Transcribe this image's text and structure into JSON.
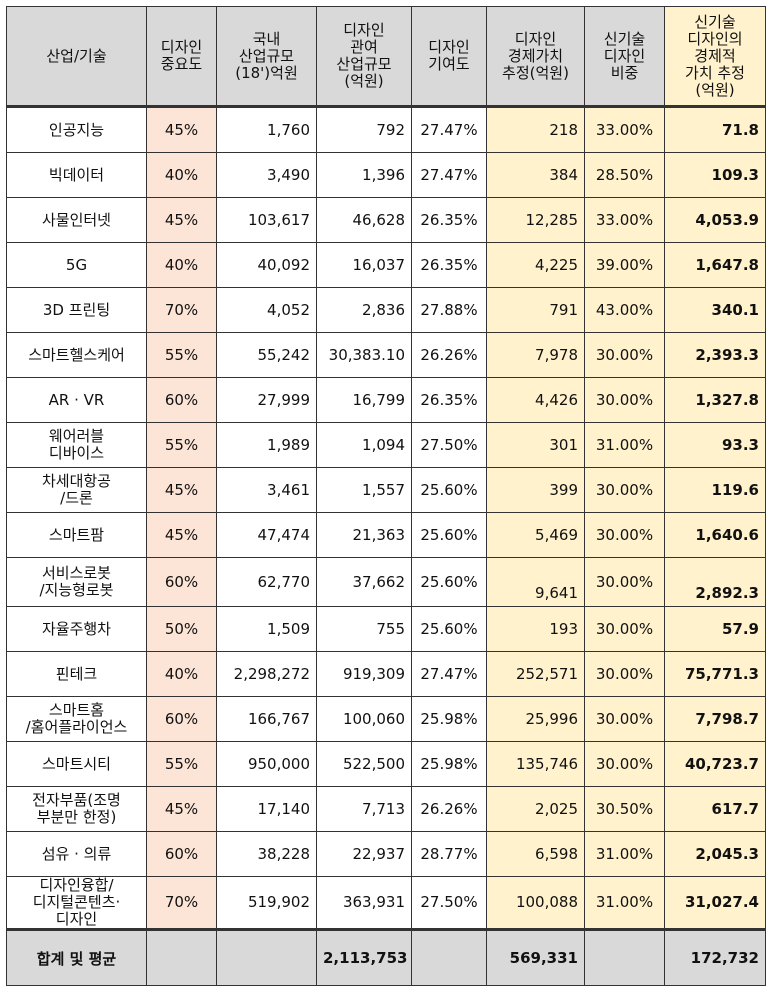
{
  "headers": [
    "산업/기술",
    "디자인\n중요도",
    "국내\n산업규모\n(18')억원",
    "디자인\n관여\n산업규모\n(억원)",
    "디자인\n기여도",
    "디자인\n경제가치\n추정(억원)",
    "신기술\n디자인\n비중",
    "신기술\n디자인의\n경제적\n가치 추정\n(억원)"
  ],
  "rows": [
    {
      "name": "인공지능",
      "importance": "45%",
      "industry_size": "1,760",
      "design_size": "792",
      "contribution": "27.47%",
      "design_value": "218",
      "share": "33.00%",
      "total": "71.8"
    },
    {
      "name": "빅데이터",
      "importance": "40%",
      "industry_size": "3,490",
      "design_size": "1,396",
      "contribution": "27.47%",
      "design_value": "384",
      "share": "28.50%",
      "total": "109.3"
    },
    {
      "name": "사물인터넷",
      "importance": "45%",
      "industry_size": "103,617",
      "design_size": "46,628",
      "contribution": "26.35%",
      "design_value": "12,285",
      "share": "33.00%",
      "total": "4,053.9"
    },
    {
      "name": "5G",
      "importance": "40%",
      "industry_size": "40,092",
      "design_size": "16,037",
      "contribution": "26.35%",
      "design_value": "4,225",
      "share": "39.00%",
      "total": "1,647.8"
    },
    {
      "name": "3D 프린팅",
      "importance": "70%",
      "industry_size": "4,052",
      "design_size": "2,836",
      "contribution": "27.88%",
      "design_value": "791",
      "share": "43.00%",
      "total": "340.1"
    },
    {
      "name": "스마트헬스케어",
      "importance": "55%",
      "industry_size": "55,242",
      "design_size": "30,383.10",
      "contribution": "26.26%",
      "design_value": "7,978",
      "share": "30.00%",
      "total": "2,393.3"
    },
    {
      "name": "AR · VR",
      "importance": "60%",
      "industry_size": "27,999",
      "design_size": "16,799",
      "contribution": "26.35%",
      "design_value": "4,426",
      "share": "30.00%",
      "total": "1,327.8"
    },
    {
      "name": "웨어러블\n디바이스",
      "importance": "55%",
      "industry_size": "1,989",
      "design_size": "1,094",
      "contribution": "27.50%",
      "design_value": "301",
      "share": "31.00%",
      "total": "93.3"
    },
    {
      "name": "차세대항공\n/드론",
      "importance": "45%",
      "industry_size": "3,461",
      "design_size": "1,557",
      "contribution": "25.60%",
      "design_value": "399",
      "share": "30.00%",
      "total": "119.6"
    },
    {
      "name": "스마트팜",
      "importance": "45%",
      "industry_size": "47,474",
      "design_size": "21,363",
      "contribution": "25.60%",
      "design_value": "5,469",
      "share": "30.00%",
      "total": "1,640.6"
    },
    {
      "name": "서비스로봇\n/지능형로봇",
      "importance": "60%",
      "industry_size": "62,770",
      "design_size": "37,662",
      "contribution": "25.60%",
      "design_value": "9,641",
      "share": "30.00%",
      "total": "2,892.3",
      "low": true
    },
    {
      "name": "자율주행차",
      "importance": "50%",
      "industry_size": "1,509",
      "design_size": "755",
      "contribution": "25.60%",
      "design_value": "193",
      "share": "30.00%",
      "total": "57.9"
    },
    {
      "name": "핀테크",
      "importance": "40%",
      "industry_size": "2,298,272",
      "design_size": "919,309",
      "contribution": "27.47%",
      "design_value": "252,571",
      "share": "30.00%",
      "total": "75,771.3"
    },
    {
      "name": "스마트홈\n/홈어플라이언스",
      "importance": "60%",
      "industry_size": "166,767",
      "design_size": "100,060",
      "contribution": "25.98%",
      "design_value": "25,996",
      "share": "30.00%",
      "total": "7,798.7"
    },
    {
      "name": "스마트시티",
      "importance": "55%",
      "industry_size": "950,000",
      "design_size": "522,500",
      "contribution": "25.98%",
      "design_value": "135,746",
      "share": "30.00%",
      "total": "40,723.7"
    },
    {
      "name": "전자부품(조명\n부분만 한정)",
      "importance": "45%",
      "industry_size": "17,140",
      "design_size": "7,713",
      "contribution": "26.26%",
      "design_value": "2,025",
      "share": "30.50%",
      "total": "617.7"
    },
    {
      "name": "섬유 · 의류",
      "importance": "60%",
      "industry_size": "38,228",
      "design_size": "22,937",
      "contribution": "28.77%",
      "design_value": "6,598",
      "share": "31.00%",
      "total": "2,045.3"
    },
    {
      "name": "디자인융합/\n디지털콘텐츠·\n디자인",
      "importance": "70%",
      "industry_size": "519,902",
      "design_size": "363,931",
      "contribution": "27.50%",
      "design_value": "100,088",
      "share": "31.00%",
      "total": "31,027.4"
    }
  ],
  "footer": {
    "label": "합계 및 평균",
    "design_size": "2,113,753",
    "design_value": "569,331",
    "total": "172,732"
  },
  "colors": {
    "header_bg": "#d9d9d9",
    "importance_bg": "#fce4d6",
    "value_bg": "#fff2cc"
  }
}
